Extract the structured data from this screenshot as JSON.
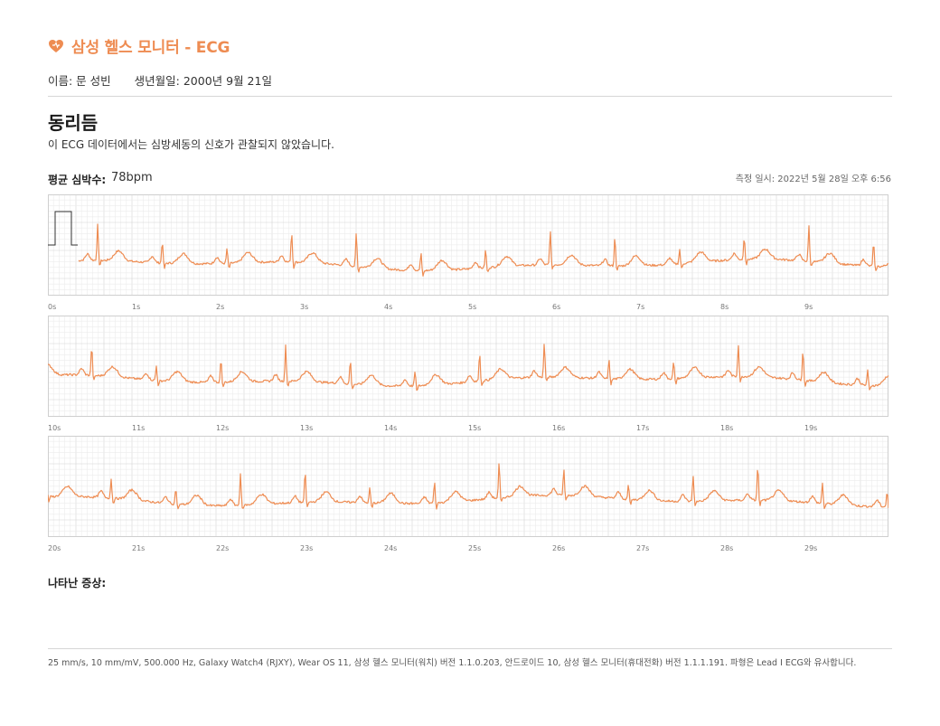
{
  "header": {
    "title": "삼성 헬스 모니터 - ECG",
    "icon": "heart-icon",
    "accent_color": "#ee8c52"
  },
  "patient": {
    "name": "이름: 문 성빈",
    "dob": "생년월일: 2000년 9월 21일"
  },
  "result": {
    "title": "동리듬",
    "description": "이 ECG 데이터에서는 심방세동의 신호가 관찰되지 않았습니다."
  },
  "heart_rate": {
    "label": "평균 심박수:",
    "value": "78bpm"
  },
  "measured_at": "측정 일시: 2022년 5월 28일 오후 6:56",
  "symptoms": {
    "label": "나타난 증상:"
  },
  "footer": "25 mm/s, 10 mm/mV, 500.000 Hz, Galaxy Watch4 (RJXY), Wear OS 11, 삼성 헬스 모니터(워치) 버전 1.1.0.203, 안드로이드 10, 삼성 헬스 모니터(휴대전화) 버전 1.1.1.191. 파형은 Lead I ECG와 유사합니다.",
  "ecg": {
    "trace_color": "#ee8c52",
    "seconds_per_strip": 10,
    "average_heart_rate_bpm": 78,
    "strips": [
      {
        "time_labels": [
          "0s",
          "1s",
          "2s",
          "3s",
          "4s",
          "5s",
          "6s",
          "7s",
          "8s",
          "9s"
        ]
      },
      {
        "time_labels": [
          "10s",
          "11s",
          "12s",
          "13s",
          "14s",
          "15s",
          "16s",
          "17s",
          "18s",
          "19s"
        ]
      },
      {
        "time_labels": [
          "20s",
          "21s",
          "22s",
          "23s",
          "24s",
          "25s",
          "26s",
          "27s",
          "28s",
          "29s"
        ]
      }
    ]
  }
}
